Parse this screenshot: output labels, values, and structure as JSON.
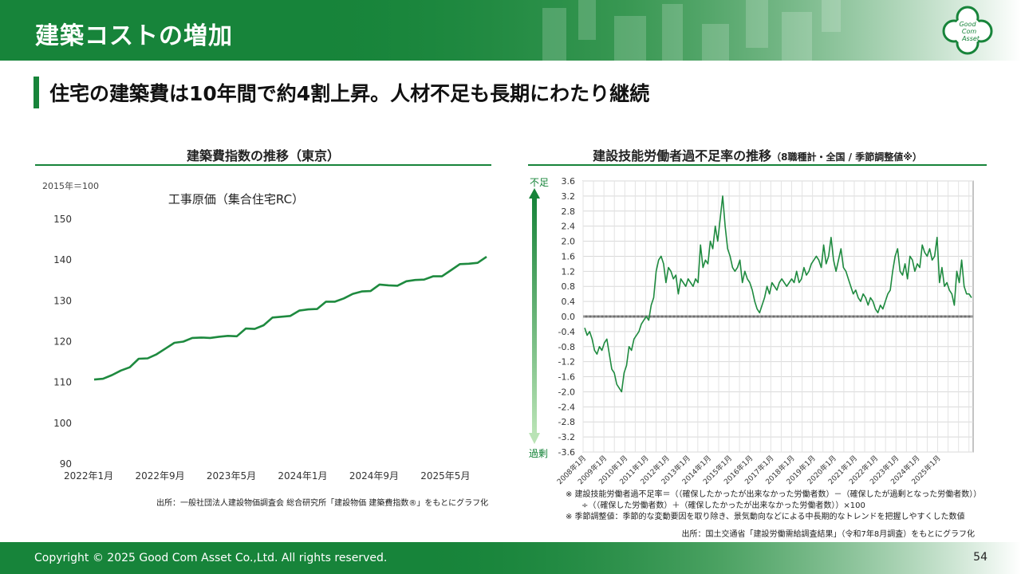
{
  "header": {
    "title": "建築コストの増加"
  },
  "subtitle": "住宅の建築費は10年間で約4割上昇。人材不足も長期にわたり継続",
  "left": {
    "title": "建築費指数の推移（東京）",
    "unit_note": "2015年＝100",
    "source": "出所：一般社団法人建設物価調査会 総合研究所「建設物価 建築費指数®」をもとにグラフ化"
  },
  "right": {
    "title": "建設技能労働者過不足率の推移",
    "title_small": "（8職種計・全国 / 季節調整値※）",
    "top_label": "不足",
    "bottom_label": "過剰",
    "note1": "※ 建設技能労働者過不足率＝（（確保したかったが出来なかった労働者数）－（確保したが過剰となった労働者数））÷（（確保した労働者数）＋（確保したかったが出来なかった労働者数））×100",
    "note2": "※ 季節調整値：季節的な変動要因を取り除き、景気動向などによる中長期的なトレンドを把握しやすくした数値",
    "source": "出所：国土交通省「建設労働需給調査結果」（令和7年8月調査）をもとにグラフ化"
  },
  "footer": {
    "copyright": "Copyright © 2025 Good Com Asset Co.,Ltd. All rights reserved.",
    "page": "54"
  },
  "logo": {
    "line1": "Good",
    "line2": "Com",
    "line3": "Asset"
  },
  "colors": {
    "accent": "#17843a",
    "line": "#1e8a3f",
    "zero_line": "#9a9a9a"
  },
  "chart_data": [
    {
      "type": "line",
      "title": "工事原価（集合住宅RC）",
      "xlabel": "",
      "ylabel": "",
      "ylim": [
        90,
        150
      ],
      "yticks": [
        90,
        100,
        110,
        120,
        130,
        140,
        150
      ],
      "x_tick_labels": [
        "2022年1月",
        "2022年9月",
        "2023年5月",
        "2024年1月",
        "2024年9月",
        "2025年5月"
      ],
      "x_tick_index": [
        0,
        8,
        16,
        24,
        32,
        40
      ],
      "grid": false,
      "series": [
        {
          "name": "工事原価（集合住宅RC）",
          "values": [
            110.7,
            110.9,
            111.8,
            112.9,
            113.7,
            115.8,
            115.9,
            116.9,
            118.3,
            119.7,
            120.0,
            120.9,
            121.0,
            120.9,
            121.2,
            121.4,
            121.3,
            123.2,
            123.1,
            124.0,
            125.9,
            126.1,
            126.3,
            127.6,
            127.9,
            128.0,
            129.8,
            129.8,
            130.6,
            131.7,
            132.3,
            132.4,
            134.0,
            133.8,
            133.7,
            134.8,
            135.1,
            135.2,
            136.0,
            136.0,
            137.5,
            139.0,
            139.1,
            139.3,
            140.8
          ]
        }
      ]
    },
    {
      "type": "line",
      "title": "",
      "xlabel": "",
      "ylabel": "",
      "ylim": [
        -3.6,
        3.6
      ],
      "yticks": [
        -3.6,
        -3.2,
        -2.8,
        -2.4,
        -2.0,
        -1.6,
        -1.2,
        -0.8,
        -0.4,
        0.0,
        0.4,
        0.8,
        1.2,
        1.6,
        2.0,
        2.4,
        2.8,
        3.2,
        3.6
      ],
      "x_tick_labels": [
        "2008年1月",
        "2009年1月",
        "2010年1月",
        "2011年1月",
        "2012年1月",
        "2013年1月",
        "2014年1月",
        "2015年1月",
        "2016年1月",
        "2017年1月",
        "2018年1月",
        "2019年1月",
        "2020年1月",
        "2021年1月",
        "2022年1月",
        "2023年1月",
        "2024年1月",
        "2025年1月"
      ],
      "grid": true,
      "series": [
        {
          "name": "過不足率",
          "values": [
            -0.3,
            -0.5,
            -0.4,
            -0.6,
            -0.9,
            -1.0,
            -0.8,
            -0.9,
            -0.7,
            -0.6,
            -1.0,
            -1.4,
            -1.5,
            -1.8,
            -1.9,
            -2.0,
            -1.5,
            -1.3,
            -0.8,
            -0.9,
            -0.6,
            -0.5,
            -0.4,
            -0.2,
            -0.1,
            0.0,
            -0.1,
            0.3,
            0.5,
            1.2,
            1.5,
            1.6,
            1.4,
            0.9,
            1.3,
            1.2,
            1.0,
            1.1,
            0.6,
            1.0,
            0.9,
            0.8,
            1.0,
            0.9,
            0.8,
            1.0,
            0.9,
            1.9,
            1.3,
            1.5,
            1.4,
            2.0,
            1.8,
            2.4,
            2.0,
            2.6,
            3.2,
            2.4,
            1.8,
            1.6,
            1.3,
            1.2,
            1.3,
            1.5,
            0.9,
            1.2,
            1.0,
            0.9,
            0.7,
            0.4,
            0.2,
            0.1,
            0.3,
            0.5,
            0.8,
            0.6,
            0.9,
            0.8,
            0.7,
            0.9,
            1.0,
            0.9,
            0.8,
            0.9,
            1.0,
            0.9,
            1.2,
            0.9,
            1.0,
            1.3,
            1.1,
            1.2,
            1.4,
            1.5,
            1.6,
            1.5,
            1.3,
            1.9,
            1.4,
            1.6,
            2.1,
            1.5,
            1.2,
            1.5,
            1.8,
            1.3,
            1.2,
            1.0,
            0.8,
            0.6,
            0.7,
            0.5,
            0.4,
            0.6,
            0.5,
            0.3,
            0.5,
            0.4,
            0.2,
            0.1,
            0.3,
            0.2,
            0.4,
            0.6,
            0.7,
            1.2,
            1.6,
            1.8,
            1.2,
            1.1,
            1.4,
            1.0,
            1.6,
            1.5,
            1.2,
            1.4,
            1.3,
            1.9,
            1.7,
            1.6,
            1.8,
            1.5,
            1.6,
            2.1,
            0.9,
            1.3,
            0.8,
            0.9,
            0.7,
            0.6,
            0.3,
            1.2,
            0.9,
            1.5,
            0.8,
            0.6,
            0.6,
            0.5
          ]
        }
      ]
    }
  ]
}
